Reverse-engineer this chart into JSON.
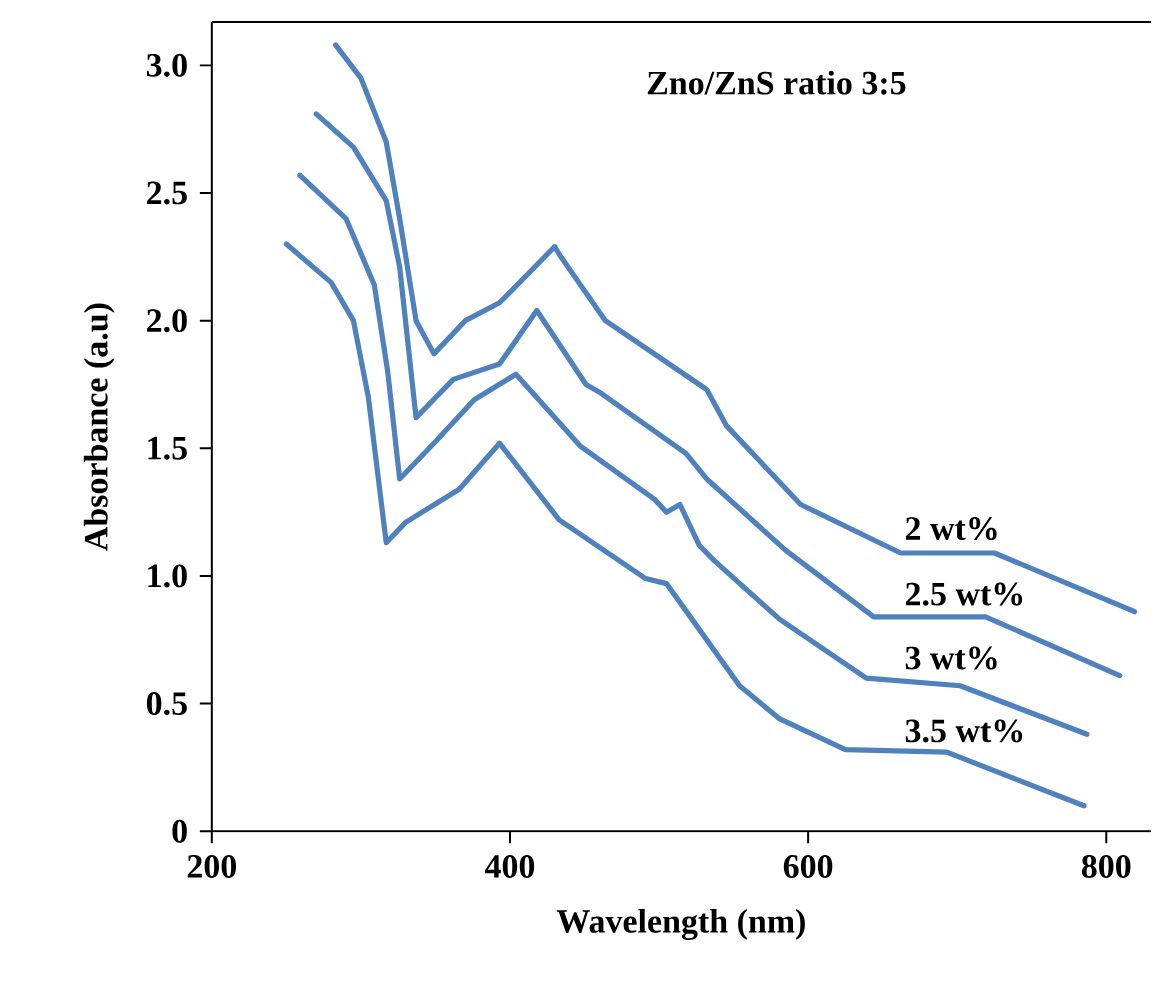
{
  "chart_data": {
    "type": "line",
    "xlabel": "Wavelength (nm)",
    "ylabel": "Absorbance (a.u)",
    "annotations": [
      "Zno/ZnS ratio 3:5"
    ],
    "xlim": [
      200,
      830
    ],
    "ylim": [
      0,
      3.17
    ],
    "xticks": [
      200,
      400,
      600,
      800
    ],
    "yticks": [
      0,
      0.5,
      {
        "value": 1,
        "label": "1.0"
      },
      1.5,
      {
        "value": 2,
        "label": "2.0"
      },
      2.5,
      {
        "value": 3,
        "label": "3.0"
      }
    ],
    "grid": false,
    "legend": false,
    "marker": "none",
    "line_style": "solid",
    "series": [
      {
        "name": "2 wt%",
        "color": "#4f81bd",
        "x": [
          283,
          300,
          317,
          326,
          337,
          349,
          370,
          393,
          430,
          433,
          464,
          527,
          532,
          545,
          595,
          662,
          725,
          819
        ],
        "values": [
          3.08,
          2.95,
          2.7,
          2.4,
          2.0,
          1.87,
          2.0,
          2.07,
          2.29,
          2.26,
          2.0,
          1.75,
          1.73,
          1.59,
          1.28,
          1.09,
          1.09,
          0.86
        ]
      },
      {
        "name": "2.5 wt%",
        "color": "#4f81bd",
        "x": [
          270,
          295,
          317,
          326,
          337,
          362,
          393,
          418,
          451,
          460,
          518,
          532,
          585,
          644,
          719,
          809
        ],
        "values": [
          2.81,
          2.68,
          2.47,
          2.21,
          1.62,
          1.77,
          1.83,
          2.04,
          1.75,
          1.72,
          1.48,
          1.38,
          1.1,
          0.84,
          0.84,
          0.61
        ]
      },
      {
        "name": "3 wt%",
        "color": "#4f81bd",
        "x": [
          259,
          290,
          309,
          318,
          326,
          349,
          376,
          404,
          447,
          497,
          505,
          514,
          527,
          537,
          581,
          639,
          702,
          787
        ],
        "values": [
          2.57,
          2.4,
          2.14,
          1.8,
          1.38,
          1.52,
          1.69,
          1.79,
          1.51,
          1.3,
          1.25,
          1.28,
          1.12,
          1.06,
          0.83,
          0.6,
          0.57,
          0.38
        ]
      },
      {
        "name": "3.5 wt%",
        "color": "#4f81bd",
        "x": [
          250,
          280,
          295,
          305,
          317,
          330,
          366,
          393,
          433,
          491,
          505,
          554,
          581,
          625,
          693,
          785
        ],
        "values": [
          2.3,
          2.15,
          2.0,
          1.7,
          1.13,
          1.21,
          1.34,
          1.52,
          1.22,
          0.99,
          0.97,
          0.57,
          0.44,
          0.32,
          0.31,
          0.1
        ]
      }
    ]
  }
}
